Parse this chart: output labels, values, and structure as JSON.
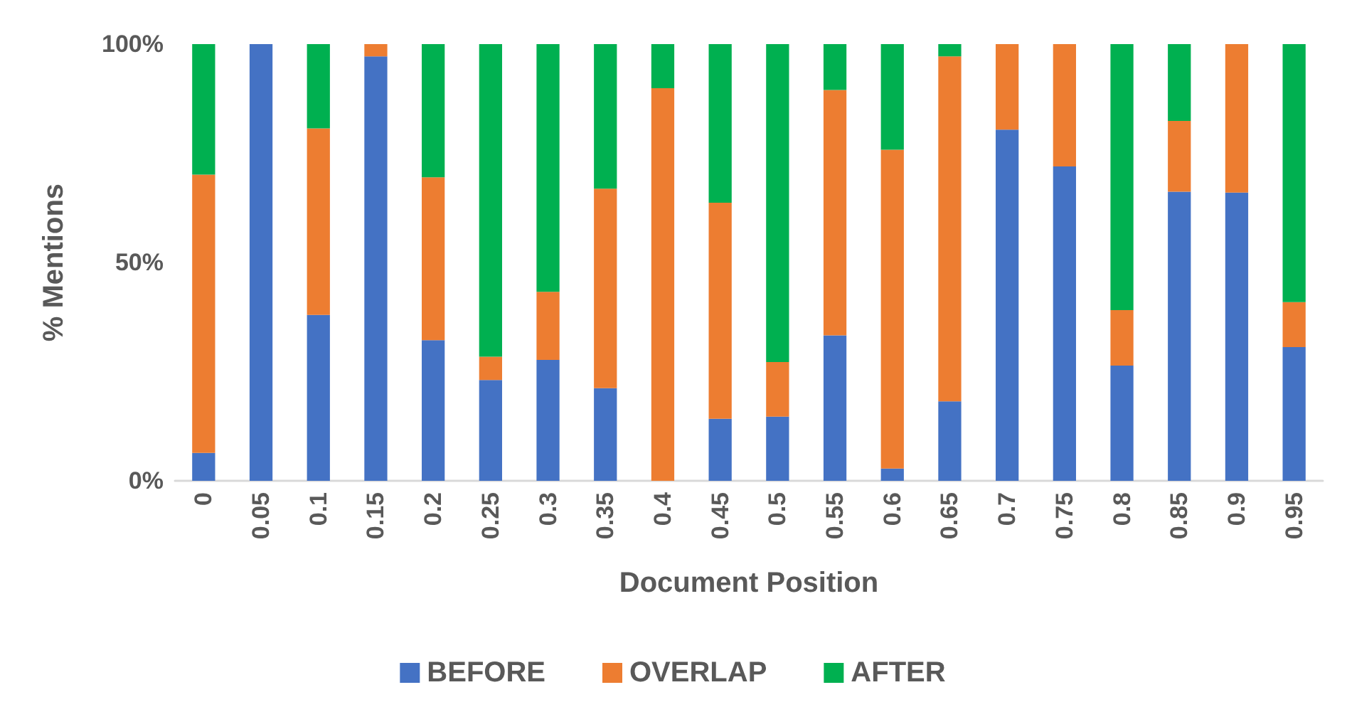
{
  "chart_data": {
    "type": "bar",
    "stacked": true,
    "xlabel": "Document Position",
    "ylabel": "% Mentions",
    "categories": [
      "0",
      "0.05",
      "0.1",
      "0.15",
      "0.2",
      "0.25",
      "0.3",
      "0.35",
      "0.4",
      "0.45",
      "0.5",
      "0.55",
      "0.6",
      "0.65",
      "0.7",
      "0.75",
      "0.8",
      "0.85",
      "0.9",
      "0.95"
    ],
    "series": [
      {
        "name": "BEFORE",
        "color": "#4472c4",
        "values": [
          6.4,
          100,
          38,
          97.2,
          32.2,
          23.1,
          27.7,
          21.2,
          0,
          14.2,
          14.7,
          33.3,
          2.8,
          18.2,
          80.4,
          72,
          26.4,
          66.2,
          66,
          30.6
        ]
      },
      {
        "name": "OVERLAP",
        "color": "#ed7d31",
        "values": [
          63.7,
          0,
          42.7,
          2.8,
          37.3,
          5.3,
          15.6,
          45.7,
          89.9,
          49.5,
          12.5,
          56.2,
          73,
          79,
          19.6,
          28,
          12.7,
          16.2,
          34,
          10.3
        ]
      },
      {
        "name": "AFTER",
        "color": "#00b050",
        "values": [
          29.9,
          0,
          19.3,
          0,
          30.5,
          71.6,
          56.7,
          33.1,
          10.1,
          36.3,
          72.8,
          10.5,
          24.2,
          2.8,
          0,
          0,
          60.9,
          17.6,
          0,
          59.1
        ]
      }
    ],
    "ylim": [
      0,
      100
    ],
    "yticks": [
      {
        "value": 0,
        "label": "0%"
      },
      {
        "value": 50,
        "label": "50%"
      },
      {
        "value": 100,
        "label": "100%"
      }
    ],
    "grid": false,
    "legend": "bottom"
  }
}
